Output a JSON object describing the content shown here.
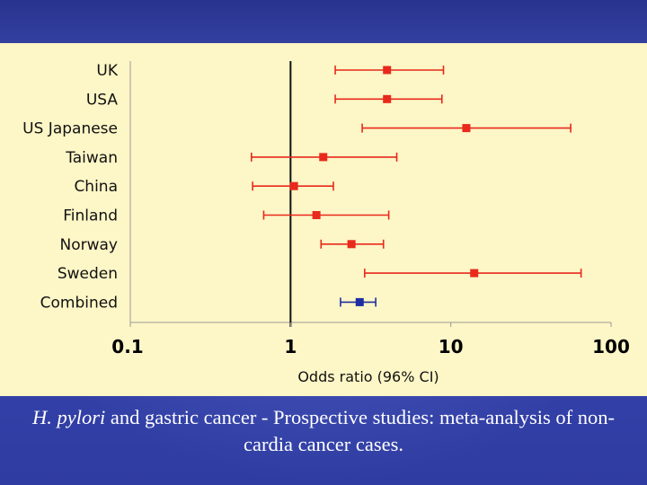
{
  "slide": {
    "caption_italic": "H. pylori",
    "caption_rest": " and gastric cancer - Prospective studies: meta-analysis of non-cardia cancer cases.",
    "background_color": "#3140a6",
    "panel_color": "#fdf6c6"
  },
  "chart_data": {
    "type": "forest",
    "title": "",
    "xlabel": "Odds ratio (96% CI)",
    "ylabel": "",
    "xscale": "log",
    "xlim": [
      0.1,
      100
    ],
    "xticks": [
      0.1,
      1,
      10,
      100
    ],
    "xtick_labels": [
      "0.1",
      "1",
      "10",
      "100"
    ],
    "reference_line": 1,
    "rows": [
      {
        "label": "UK",
        "or": 4.0,
        "lo": 1.9,
        "hi": 9.0,
        "color": "#e8291c"
      },
      {
        "label": "USA",
        "or": 4.0,
        "lo": 1.9,
        "hi": 8.8,
        "color": "#e8291c"
      },
      {
        "label": "US Japanese",
        "or": 12.5,
        "lo": 2.8,
        "hi": 56,
        "color": "#e8291c"
      },
      {
        "label": "Taiwan",
        "or": 1.6,
        "lo": 0.57,
        "hi": 4.6,
        "color": "#e8291c"
      },
      {
        "label": "China",
        "or": 1.05,
        "lo": 0.58,
        "hi": 1.85,
        "color": "#e8291c"
      },
      {
        "label": "Finland",
        "or": 1.45,
        "lo": 0.68,
        "hi": 4.1,
        "color": "#e8291c"
      },
      {
        "label": "Norway",
        "or": 2.4,
        "lo": 1.55,
        "hi": 3.8,
        "color": "#e8291c"
      },
      {
        "label": "Sweden",
        "or": 14.0,
        "lo": 2.9,
        "hi": 65,
        "color": "#e8291c"
      },
      {
        "label": "Combined",
        "or": 2.7,
        "lo": 2.05,
        "hi": 3.4,
        "color": "#1f2fa3"
      }
    ]
  }
}
